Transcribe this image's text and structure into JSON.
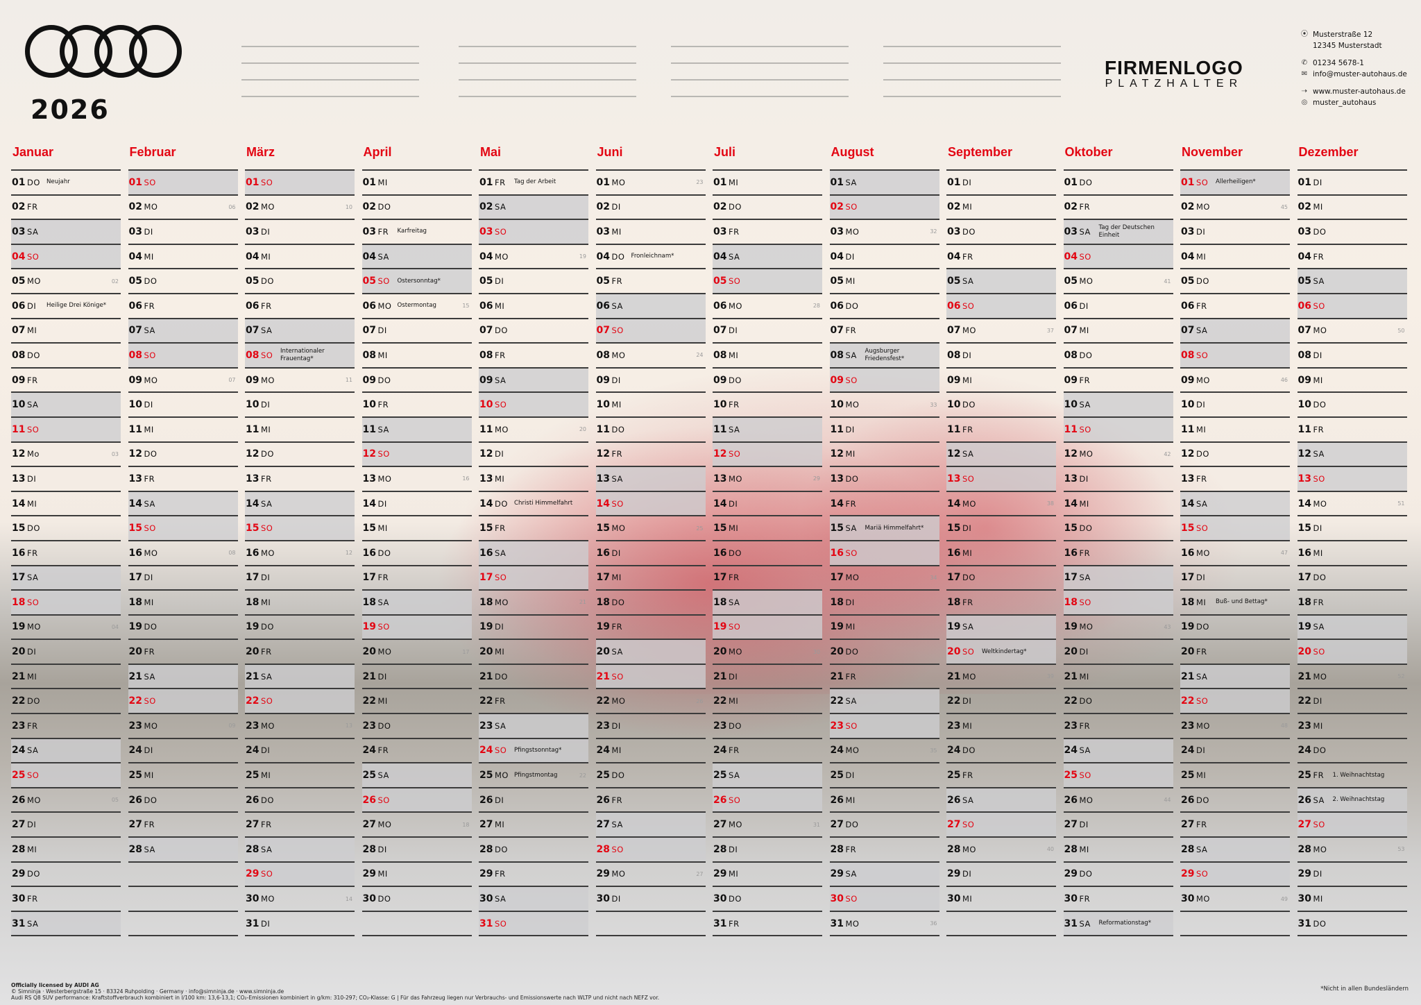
{
  "header": {
    "brand_icon": "audi-four-rings-icon",
    "year": "2026",
    "notes_blocks": 4,
    "notes_lines_per_block": 4,
    "logo_line1": "FIRMENLOGO",
    "logo_line2": "PLATZHALTER"
  },
  "contact": {
    "address_icon": "location-pin-icon",
    "street": "Musterstraße 12",
    "city": "12345 Musterstadt",
    "phone_icon": "phone-icon",
    "phone": "01234 5678-1",
    "email_icon": "envelope-icon",
    "email": "info@muster-autohaus.de",
    "web_icon": "cursor-web-icon",
    "web": "www.muster-autohaus.de",
    "instagram_icon": "instagram-icon",
    "instagram": "muster_autohaus"
  },
  "colors": {
    "accent": "#e30613",
    "weekend_bg": "#cdcdcf",
    "rule": "#3b3b3b"
  },
  "months": [
    {
      "name": "Januar",
      "days": 31,
      "start": 4,
      "holidays": {
        "1": "Neujahr",
        "6": "Heilige Drei Könige*"
      },
      "kw": {
        "5": "02",
        "12": "03",
        "19": "04",
        "26": "05"
      },
      "overrides": {
        "12": "Mo"
      }
    },
    {
      "name": "Februar",
      "days": 28,
      "start": 0,
      "holidays": {},
      "kw": {
        "2": "06",
        "9": "07",
        "16": "08",
        "23": "09"
      }
    },
    {
      "name": "März",
      "days": 31,
      "start": 0,
      "holidays": {
        "8": "Internationaler Frauentag*"
      },
      "kw": {
        "2": "10",
        "9": "11",
        "16": "12",
        "23": "13",
        "30": "14"
      }
    },
    {
      "name": "April",
      "days": 30,
      "start": 3,
      "holidays": {
        "3": "Karfreitag",
        "5": "Ostersonntag*",
        "6": "Ostermontag"
      },
      "kw": {
        "6": "15",
        "13": "16",
        "20": "17",
        "27": "18"
      }
    },
    {
      "name": "Mai",
      "days": 31,
      "start": 5,
      "holidays": {
        "1": "Tag der Arbeit",
        "14": "Christi Himmelfahrt",
        "24": "Pfingstsonntag*",
        "25": "Pfingstmontag"
      },
      "kw": {
        "4": "19",
        "11": "20",
        "18": "21",
        "25": "22"
      }
    },
    {
      "name": "Juni",
      "days": 30,
      "start": 1,
      "holidays": {
        "4": "Fronleichnam*"
      },
      "kw": {
        "1": "23",
        "8": "24",
        "15": "25",
        "22": "26",
        "29": "27"
      }
    },
    {
      "name": "Juli",
      "days": 31,
      "start": 3,
      "holidays": {},
      "kw": {
        "6": "28",
        "13": "29",
        "20": "30",
        "27": "31"
      }
    },
    {
      "name": "August",
      "days": 31,
      "start": 6,
      "holidays": {
        "8": "Augsburger Friedensfest*",
        "15": "Mariä Himmelfahrt*"
      },
      "kw": {
        "3": "32",
        "10": "33",
        "17": "34",
        "24": "35",
        "31": "36"
      }
    },
    {
      "name": "September",
      "days": 30,
      "start": 2,
      "holidays": {
        "20": "Weltkindertag*"
      },
      "kw": {
        "7": "37",
        "14": "38",
        "21": "39",
        "28": "40"
      }
    },
    {
      "name": "Oktober",
      "days": 31,
      "start": 4,
      "holidays": {
        "3": "Tag der Deutschen Einheit",
        "31": "Reformationstag*"
      },
      "kw": {
        "5": "41",
        "12": "42",
        "19": "43",
        "26": "44"
      }
    },
    {
      "name": "November",
      "days": 30,
      "start": 0,
      "holidays": {
        "1": "Allerheiligen*",
        "18": "Buß- und Bettag*"
      },
      "kw": {
        "2": "45",
        "9": "46",
        "16": "47",
        "23": "48",
        "30": "49"
      }
    },
    {
      "name": "Dezember",
      "days": 31,
      "start": 2,
      "holidays": {
        "25": "1. Weihnachtstag",
        "26": "2. Weihnachtstag"
      },
      "kw": {
        "7": "50",
        "14": "51",
        "21": "52",
        "28": "53"
      }
    }
  ],
  "weekday_abbr": [
    "SO",
    "MO",
    "DI",
    "MI",
    "DO",
    "FR",
    "SA"
  ],
  "footer": {
    "license": "Officially licensed by AUDI AG",
    "copyright": "© Simninja · Westerbergstraße 15 · 83324 Ruhpolding · Germany · info@simninja.de · www.simninja.de",
    "emissions": "Audi RS Q8 SUV performance: Kraftstoffverbrauch kombiniert in l/100 km: 13,6-13,1; CO₂-Emissionen kombiniert in g/km: 310-297; CO₂-Klasse: G | Für das Fahrzeug liegen nur Verbrauchs- und Emissionswerte nach WLTP und nicht nach NEFZ vor.",
    "footnote": "*Nicht in allen Bundesländern"
  }
}
